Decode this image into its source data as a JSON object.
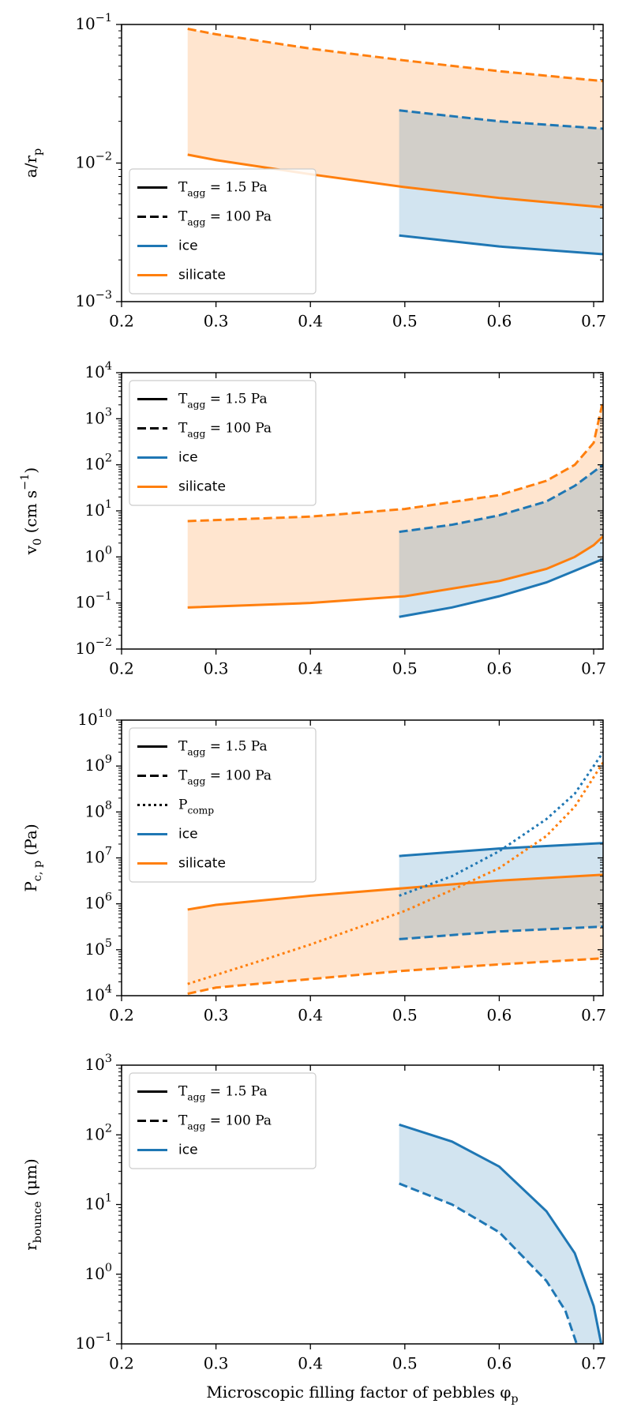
{
  "chart_data": [
    {
      "type": "line",
      "log_y": true,
      "ylabel": [
        {
          "text": "a/r"
        },
        {
          "text": "p",
          "shift": "sub"
        }
      ],
      "xlim": [
        0.2,
        0.71
      ],
      "xticks": [
        0.2,
        0.3,
        0.4,
        0.5,
        0.6,
        0.7
      ],
      "ylim": [
        0.001,
        0.1
      ],
      "yticks": [
        {
          "value": 0.001,
          "label": "10",
          "exponent": "−3"
        },
        {
          "value": 0.01,
          "label": "10",
          "exponent": "−2"
        },
        {
          "value": 0.1,
          "label": "10",
          "exponent": "−1"
        }
      ],
      "legend_loc": "lower left",
      "legend": [
        {
          "style": "solid",
          "color": "#000000",
          "parts": [
            {
              "text": "T"
            },
            {
              "text": "agg",
              "shift": "sub"
            },
            {
              "text": " = 1.5 Pa"
            }
          ]
        },
        {
          "style": "dashed",
          "color": "#000000",
          "parts": [
            {
              "text": "T"
            },
            {
              "text": "agg",
              "shift": "sub"
            },
            {
              "text": " = 100 Pa"
            }
          ]
        },
        {
          "style": "solid",
          "color": "#1f77b4",
          "parts": [
            {
              "text": "ice",
              "font": "sans"
            }
          ]
        },
        {
          "style": "solid",
          "color": "#ff7f0e",
          "parts": [
            {
              "text": "silicate",
              "font": "sans"
            }
          ]
        }
      ],
      "fills": [
        [
          0,
          1
        ],
        [
          2,
          3
        ]
      ],
      "series": [
        {
          "color": "#ff7f0e",
          "style": "solid",
          "x": [
            0.27,
            0.3,
            0.4,
            0.5,
            0.6,
            0.71
          ],
          "values": [
            0.0115,
            0.0105,
            0.0083,
            0.0067,
            0.0056,
            0.0048
          ]
        },
        {
          "color": "#ff7f0e",
          "style": "dashed",
          "x": [
            0.27,
            0.3,
            0.4,
            0.5,
            0.6,
            0.71
          ],
          "values": [
            0.093,
            0.085,
            0.067,
            0.055,
            0.046,
            0.039
          ]
        },
        {
          "color": "#1f77b4",
          "style": "solid",
          "x": [
            0.494,
            0.6,
            0.71
          ],
          "values": [
            0.003,
            0.0025,
            0.0022
          ]
        },
        {
          "color": "#1f77b4",
          "style": "dashed",
          "x": [
            0.494,
            0.6,
            0.71
          ],
          "values": [
            0.024,
            0.02,
            0.0177
          ]
        }
      ]
    },
    {
      "type": "line",
      "log_y": true,
      "ylabel": [
        {
          "text": "v"
        },
        {
          "text": "0",
          "shift": "sub"
        },
        {
          "text": " (cm s"
        },
        {
          "text": "−1",
          "shift": "super"
        },
        {
          "text": ")"
        }
      ],
      "xlim": [
        0.2,
        0.71
      ],
      "xticks": [
        0.2,
        0.3,
        0.4,
        0.5,
        0.6,
        0.7
      ],
      "ylim": [
        0.01,
        10000
      ],
      "yticks": [
        {
          "value": 0.01,
          "label": "10",
          "exponent": "−2"
        },
        {
          "value": 0.1,
          "label": "10",
          "exponent": "−1"
        },
        {
          "value": 1,
          "label": "10",
          "exponent": "0"
        },
        {
          "value": 10,
          "label": "10",
          "exponent": "1"
        },
        {
          "value": 100,
          "label": "10",
          "exponent": "2"
        },
        {
          "value": 1000,
          "label": "10",
          "exponent": "3"
        },
        {
          "value": 10000,
          "label": "10",
          "exponent": "4"
        }
      ],
      "legend_loc": "upper left",
      "legend": [
        {
          "style": "solid",
          "color": "#000000",
          "parts": [
            {
              "text": "T"
            },
            {
              "text": "agg",
              "shift": "sub"
            },
            {
              "text": " = 1.5 Pa"
            }
          ]
        },
        {
          "style": "dashed",
          "color": "#000000",
          "parts": [
            {
              "text": "T"
            },
            {
              "text": "agg",
              "shift": "sub"
            },
            {
              "text": " = 100 Pa"
            }
          ]
        },
        {
          "style": "solid",
          "color": "#1f77b4",
          "parts": [
            {
              "text": "ice",
              "font": "sans"
            }
          ]
        },
        {
          "style": "solid",
          "color": "#ff7f0e",
          "parts": [
            {
              "text": "silicate",
              "font": "sans"
            }
          ]
        }
      ],
      "fills": [
        [
          0,
          1
        ],
        [
          2,
          3
        ]
      ],
      "series": [
        {
          "color": "#ff7f0e",
          "style": "solid",
          "x": [
            0.27,
            0.4,
            0.5,
            0.6,
            0.65,
            0.68,
            0.7,
            0.71
          ],
          "values": [
            0.08,
            0.1,
            0.14,
            0.3,
            0.55,
            1.0,
            1.8,
            2.8
          ]
        },
        {
          "color": "#ff7f0e",
          "style": "dashed",
          "x": [
            0.27,
            0.4,
            0.5,
            0.6,
            0.65,
            0.68,
            0.7,
            0.71
          ],
          "values": [
            6,
            7.5,
            11,
            22,
            45,
            100,
            300,
            2500
          ]
        },
        {
          "color": "#1f77b4",
          "style": "solid",
          "x": [
            0.494,
            0.55,
            0.6,
            0.65,
            0.68,
            0.71
          ],
          "values": [
            0.05,
            0.08,
            0.14,
            0.28,
            0.5,
            0.9
          ]
        },
        {
          "color": "#1f77b4",
          "style": "dashed",
          "x": [
            0.494,
            0.55,
            0.6,
            0.65,
            0.68,
            0.71
          ],
          "values": [
            3.5,
            5,
            8,
            16,
            35,
            100
          ]
        }
      ]
    },
    {
      "type": "line",
      "log_y": true,
      "ylabel": [
        {
          "text": "P"
        },
        {
          "text": "c, p",
          "shift": "sub"
        },
        {
          "text": " (Pa)"
        }
      ],
      "xlim": [
        0.2,
        0.71
      ],
      "xticks": [
        0.2,
        0.3,
        0.4,
        0.5,
        0.6,
        0.7
      ],
      "ylim": [
        10000,
        10000000000
      ],
      "yticks": [
        {
          "value": 10000,
          "label": "10",
          "exponent": "4"
        },
        {
          "value": 100000,
          "label": "10",
          "exponent": "5"
        },
        {
          "value": 1000000,
          "label": "10",
          "exponent": "6"
        },
        {
          "value": 10000000,
          "label": "10",
          "exponent": "7"
        },
        {
          "value": 100000000,
          "label": "10",
          "exponent": "8"
        },
        {
          "value": 1000000000,
          "label": "10",
          "exponent": "9"
        },
        {
          "value": 10000000000,
          "label": "10",
          "exponent": "10"
        }
      ],
      "legend_loc": "upper left",
      "legend": [
        {
          "style": "solid",
          "color": "#000000",
          "parts": [
            {
              "text": "T"
            },
            {
              "text": "agg",
              "shift": "sub"
            },
            {
              "text": " = 1.5 Pa"
            }
          ]
        },
        {
          "style": "dashed",
          "color": "#000000",
          "parts": [
            {
              "text": "T"
            },
            {
              "text": "agg",
              "shift": "sub"
            },
            {
              "text": " = 100 Pa"
            }
          ]
        },
        {
          "style": "dotted",
          "color": "#000000",
          "parts": [
            {
              "text": "P"
            },
            {
              "text": "comp",
              "shift": "sub"
            }
          ]
        },
        {
          "style": "solid",
          "color": "#1f77b4",
          "parts": [
            {
              "text": "ice",
              "font": "sans"
            }
          ]
        },
        {
          "style": "solid",
          "color": "#ff7f0e",
          "parts": [
            {
              "text": "silicate",
              "font": "sans"
            }
          ]
        }
      ],
      "fills": [
        [
          0,
          1
        ],
        [
          2,
          3
        ]
      ],
      "series": [
        {
          "color": "#ff7f0e",
          "style": "solid",
          "x": [
            0.27,
            0.3,
            0.4,
            0.5,
            0.6,
            0.71
          ],
          "values": [
            750000,
            950000,
            1500000,
            2200000,
            3200000,
            4300000
          ]
        },
        {
          "color": "#ff7f0e",
          "style": "dashed",
          "x": [
            0.27,
            0.3,
            0.4,
            0.5,
            0.6,
            0.71
          ],
          "values": [
            11000,
            15000,
            23000,
            35000,
            48000,
            65000
          ]
        },
        {
          "color": "#1f77b4",
          "style": "solid",
          "x": [
            0.494,
            0.6,
            0.71
          ],
          "values": [
            11000000,
            16000000,
            21000000
          ]
        },
        {
          "color": "#1f77b4",
          "style": "dashed",
          "x": [
            0.494,
            0.6,
            0.71
          ],
          "values": [
            170000,
            250000,
            320000
          ]
        },
        {
          "color": "#ff7f0e",
          "style": "dotted",
          "x": [
            0.27,
            0.35,
            0.4,
            0.5,
            0.55,
            0.6,
            0.65,
            0.68,
            0.71
          ],
          "values": [
            18000,
            60000,
            130000,
            700000,
            2000000,
            6000000,
            30000000,
            130000000,
            1200000000
          ]
        },
        {
          "color": "#1f77b4",
          "style": "dotted",
          "x": [
            0.494,
            0.55,
            0.6,
            0.65,
            0.68,
            0.71
          ],
          "values": [
            1500000,
            4000000,
            14000000,
            70000000,
            250000000,
            2000000000
          ]
        }
      ]
    },
    {
      "type": "line",
      "log_y": true,
      "ylabel": [
        {
          "text": "r"
        },
        {
          "text": "bounce",
          "shift": "sub"
        },
        {
          "text": " (μm)"
        }
      ],
      "xlabel": [
        {
          "text": "Microscopic filling factor of pebbles φ"
        },
        {
          "text": "p",
          "shift": "sub"
        }
      ],
      "xlim": [
        0.2,
        0.71
      ],
      "xticks": [
        0.2,
        0.3,
        0.4,
        0.5,
        0.6,
        0.7
      ],
      "ylim": [
        0.1,
        1000
      ],
      "yticks": [
        {
          "value": 0.1,
          "label": "10",
          "exponent": "−1"
        },
        {
          "value": 1,
          "label": "10",
          "exponent": "0"
        },
        {
          "value": 10,
          "label": "10",
          "exponent": "1"
        },
        {
          "value": 100,
          "label": "10",
          "exponent": "2"
        },
        {
          "value": 1000,
          "label": "10",
          "exponent": "3"
        }
      ],
      "legend_loc": "upper left",
      "legend": [
        {
          "style": "solid",
          "color": "#000000",
          "parts": [
            {
              "text": "T"
            },
            {
              "text": "agg",
              "shift": "sub"
            },
            {
              "text": " = 1.5 Pa"
            }
          ]
        },
        {
          "style": "dashed",
          "color": "#000000",
          "parts": [
            {
              "text": "T"
            },
            {
              "text": "agg",
              "shift": "sub"
            },
            {
              "text": " = 100 Pa"
            }
          ]
        },
        {
          "style": "solid",
          "color": "#1f77b4",
          "parts": [
            {
              "text": "ice",
              "font": "sans"
            }
          ]
        }
      ],
      "fills": [
        [
          0,
          1
        ]
      ],
      "series": [
        {
          "color": "#1f77b4",
          "style": "solid",
          "x": [
            0.494,
            0.55,
            0.6,
            0.65,
            0.68,
            0.7,
            0.708
          ],
          "values": [
            140,
            80,
            35,
            8,
            2,
            0.35,
            0.1
          ]
        },
        {
          "color": "#1f77b4",
          "style": "dashed",
          "x": [
            0.494,
            0.55,
            0.6,
            0.65,
            0.67,
            0.682
          ],
          "values": [
            20,
            10,
            4,
            0.8,
            0.3,
            0.1
          ]
        }
      ]
    }
  ]
}
